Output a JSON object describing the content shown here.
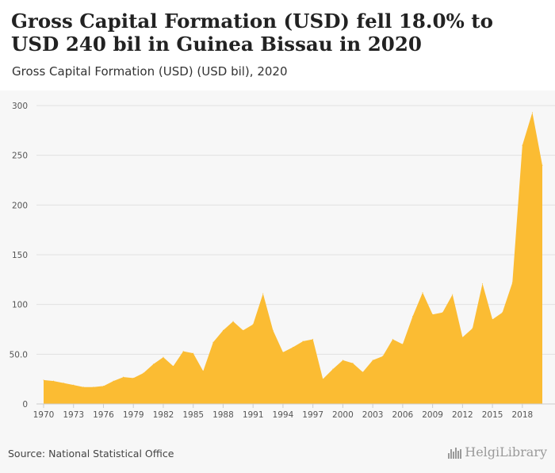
{
  "header": {
    "title": "Gross Capital Formation (USD) fell 18.0% to USD 240 bil in Guinea Bissau in 2020",
    "subtitle": "Gross Capital Formation (USD) (USD bil), 2020"
  },
  "footer": {
    "source": "Source: National Statistical Office",
    "logo_text": "HelgiLibrary"
  },
  "colors": {
    "area_fill": "#fbbc33",
    "gridline": "#e2e2e2",
    "axis_text": "#555555"
  },
  "chart_data": {
    "type": "area",
    "title": "Gross Capital Formation (USD) fell 18.0% to USD 240 bil in Guinea Bissau in 2020",
    "subtitle": "Gross Capital Formation (USD) (USD bil), 2020",
    "xlabel": "",
    "ylabel": "",
    "unit": "USD bil",
    "ylim": [
      0,
      300
    ],
    "y_ticks": [
      0,
      50,
      100,
      150,
      200,
      250,
      300
    ],
    "y_tick_labels": [
      "0",
      "50.0",
      "100",
      "150",
      "200",
      "250",
      "300"
    ],
    "x_ticks": [
      1970,
      1973,
      1976,
      1979,
      1982,
      1985,
      1988,
      1991,
      1994,
      1997,
      2000,
      2003,
      2006,
      2009,
      2012,
      2015,
      2018
    ],
    "grid": true,
    "series": [
      {
        "x": [
          1970,
          1971,
          1972,
          1973,
          1974,
          1975,
          1976,
          1977,
          1978,
          1979,
          1980,
          1981,
          1982,
          1983,
          1984,
          1985,
          1986,
          1987,
          1988,
          1989,
          1990,
          1991,
          1992,
          1993,
          1994,
          1995,
          1996,
          1997,
          1998,
          1999,
          2000,
          2001,
          2002,
          2003,
          2004,
          2005,
          2006,
          2007,
          2008,
          2009,
          2010,
          2011,
          2012,
          2013,
          2014,
          2015,
          2016,
          2017,
          2018,
          2019,
          2020
        ],
        "values": [
          24,
          23,
          21,
          19,
          17,
          17,
          18,
          23,
          27,
          26,
          31,
          40,
          47,
          38,
          53,
          51,
          33,
          62,
          74,
          83,
          74,
          80,
          111,
          74,
          52,
          57,
          63,
          65,
          25,
          35,
          44,
          41,
          32,
          44,
          48,
          65,
          60,
          88,
          112,
          90,
          92,
          110,
          67,
          76,
          121,
          85,
          92,
          122,
          260,
          293,
          240
        ]
      }
    ]
  }
}
